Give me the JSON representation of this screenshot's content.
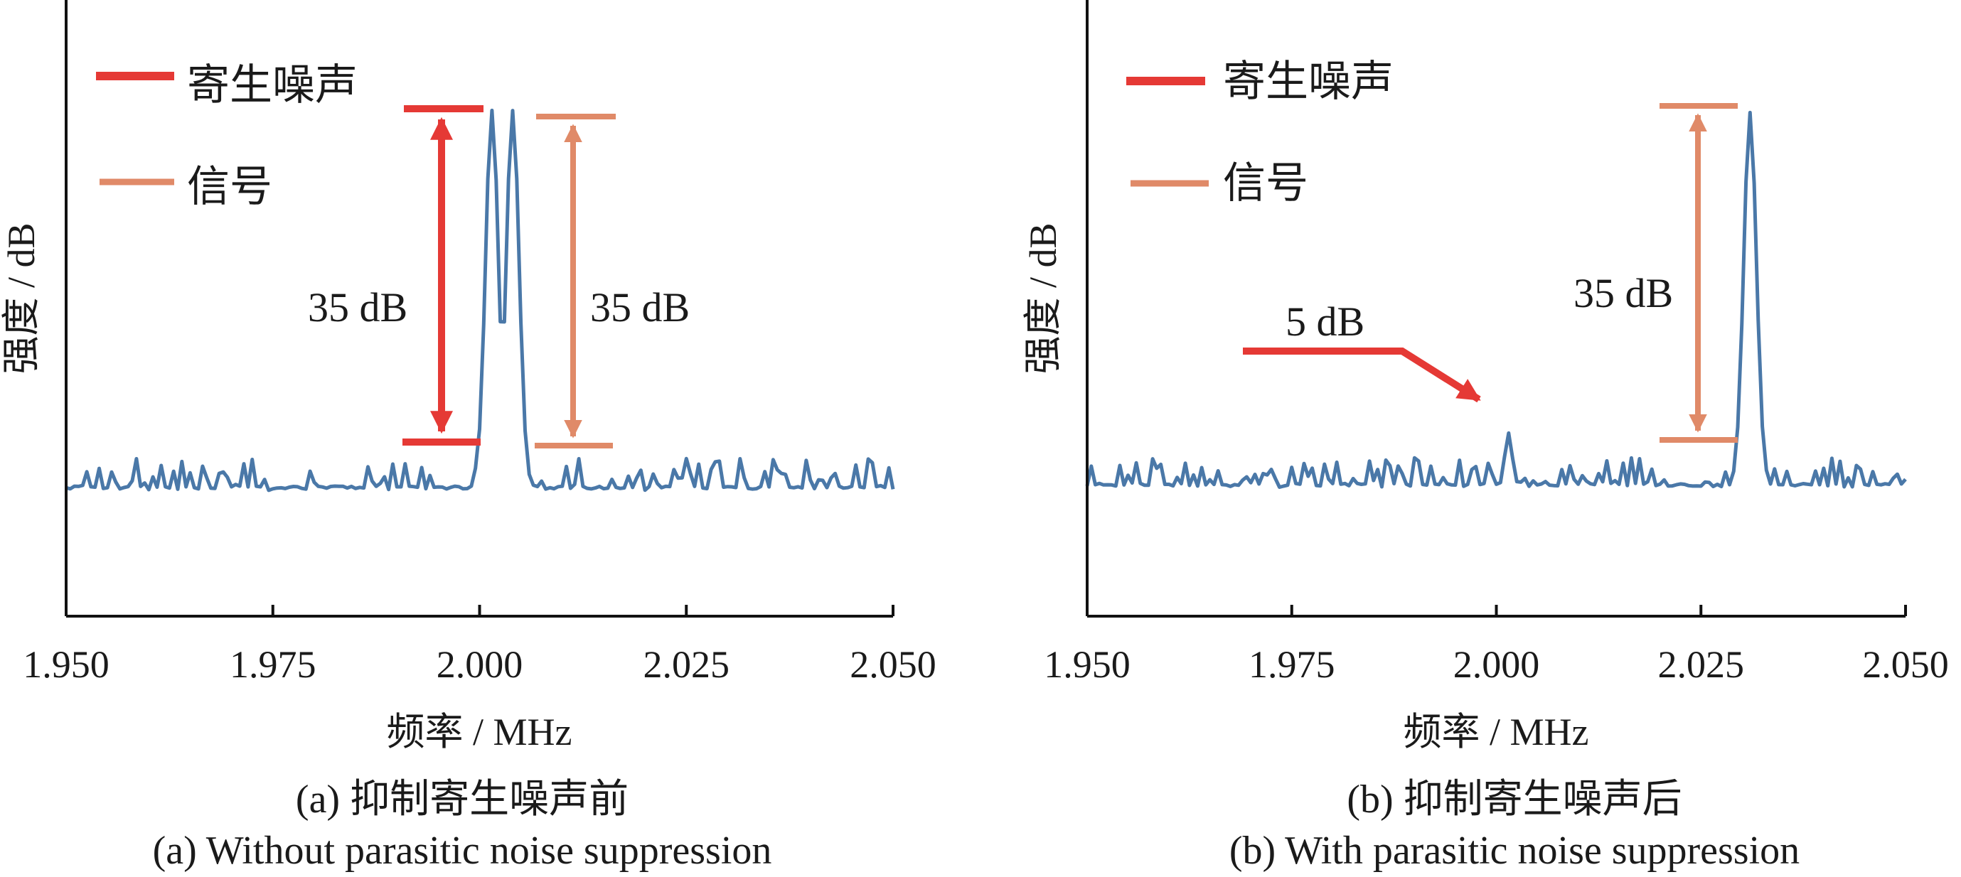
{
  "chart_data": [
    {
      "type": "line",
      "panel": "a",
      "ylabel": "强度 / dB",
      "xlabel": "频率 / MHz",
      "xlim": [
        1.95,
        2.05
      ],
      "x_ticks": [
        "1.950",
        "1.975",
        "2.000",
        "2.025",
        "2.050"
      ],
      "caption_cn": "(a) 抑制寄生噪声前",
      "caption_en": "(a) Without parasitic noise suppression",
      "legend": {
        "placement": "top-left",
        "items": [
          {
            "label": "寄生噪声",
            "color": "#e53935"
          },
          {
            "label": "信号",
            "color": "#e08a68"
          }
        ]
      },
      "series": [
        {
          "color": "#4a78a8",
          "noise_floor_db": 0,
          "peaks": [
            {
              "x": 2.0015,
              "height_db": 35,
              "type": "parasitic"
            },
            {
              "x": 2.004,
              "height_db": 35,
              "type": "signal"
            }
          ]
        }
      ],
      "annotations": [
        {
          "text": "35 dB",
          "kind": "parasitic",
          "x": 1.9955,
          "color": "#e53935"
        },
        {
          "text": "35 dB",
          "kind": "signal",
          "x": 2.012,
          "color": "#e08a68"
        }
      ]
    },
    {
      "type": "line",
      "panel": "b",
      "ylabel": "强度 / dB",
      "xlabel": "频率 / MHz",
      "xlim": [
        1.95,
        2.05
      ],
      "x_ticks": [
        "1.950",
        "1.975",
        "2.000",
        "2.025",
        "2.050"
      ],
      "caption_cn": "(b) 抑制寄生噪声后",
      "caption_en": "(b) With parasitic noise suppression",
      "legend": {
        "placement": "top-left",
        "items": [
          {
            "label": "寄生噪声",
            "color": "#e53935"
          },
          {
            "label": "信号",
            "color": "#e08a68"
          }
        ]
      },
      "series": [
        {
          "color": "#4a78a8",
          "noise_floor_db": 0,
          "peaks": [
            {
              "x": 2.0015,
              "height_db": 5,
              "type": "parasitic"
            },
            {
              "x": 2.031,
              "height_db": 35,
              "type": "signal"
            }
          ]
        }
      ],
      "annotations": [
        {
          "text": "5 dB",
          "kind": "parasitic-arrow",
          "x": 1.99,
          "color": "#e53935"
        },
        {
          "text": "35 dB",
          "kind": "signal",
          "x": 2.0245,
          "color": "#e08a68"
        }
      ]
    }
  ]
}
